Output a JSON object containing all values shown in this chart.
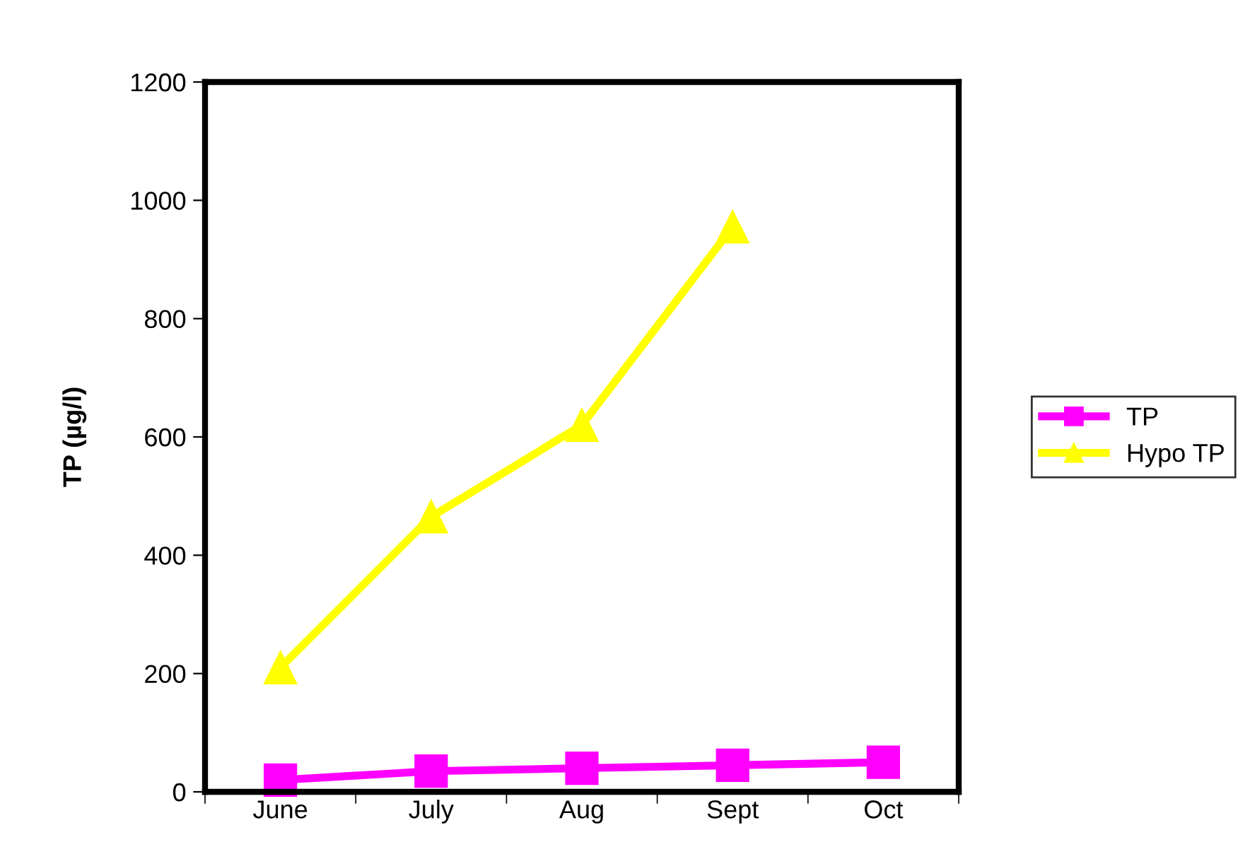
{
  "chart_data": {
    "type": "line",
    "ylabel": "TP (µg/l)",
    "categories": [
      "June",
      "July",
      "Aug",
      "Sept",
      "Oct"
    ],
    "series": [
      {
        "name": "TP",
        "color": "#ff00ff",
        "marker": "square",
        "values": [
          20,
          35,
          40,
          45,
          50
        ]
      },
      {
        "name": "Hypo TP",
        "color": "#ffff00",
        "marker": "triangle",
        "values": [
          210,
          465,
          620,
          955,
          null
        ]
      }
    ],
    "ylim": [
      0,
      1200
    ],
    "yticks": [
      0,
      200,
      400,
      600,
      800,
      1000,
      1200
    ],
    "grid": false,
    "legend": "right",
    "line_style": "solid"
  }
}
